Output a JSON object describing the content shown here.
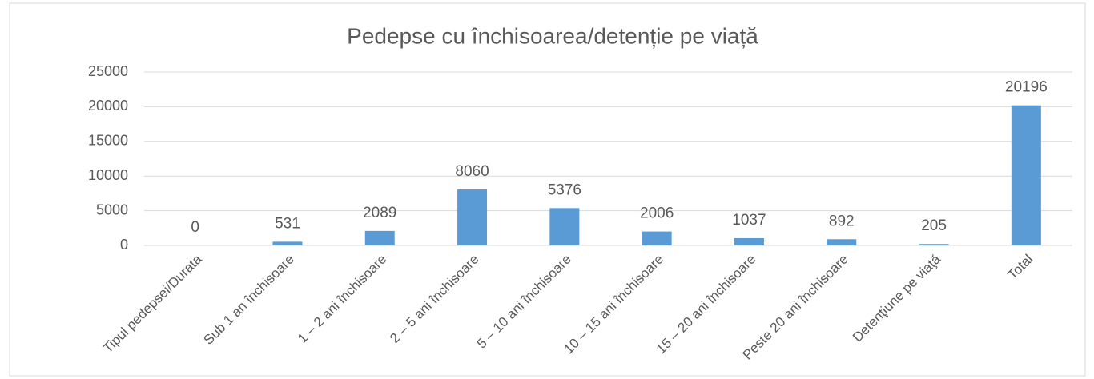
{
  "chart_data": {
    "type": "bar",
    "title": "Pedepse cu închisoarea/detenție pe viață",
    "categories": [
      "Tipul pedepsei/Durata",
      "Sub 1 an închisoare",
      "1 – 2 ani închisoare",
      "2 – 5 ani închisoare",
      "5 – 10 ani închisoare",
      "10 – 15 ani închisoare",
      "15 – 20 ani închisoare",
      "Peste 20 ani închisoare",
      "Detenţiune pe viaţă",
      "Total"
    ],
    "values": [
      0,
      531,
      2089,
      8060,
      5376,
      2006,
      1037,
      892,
      205,
      20196
    ],
    "color": "#5b9bd5",
    "ylim": [
      0,
      25000
    ],
    "yticks": [
      0,
      5000,
      10000,
      15000,
      20000,
      25000
    ],
    "grid": true
  }
}
